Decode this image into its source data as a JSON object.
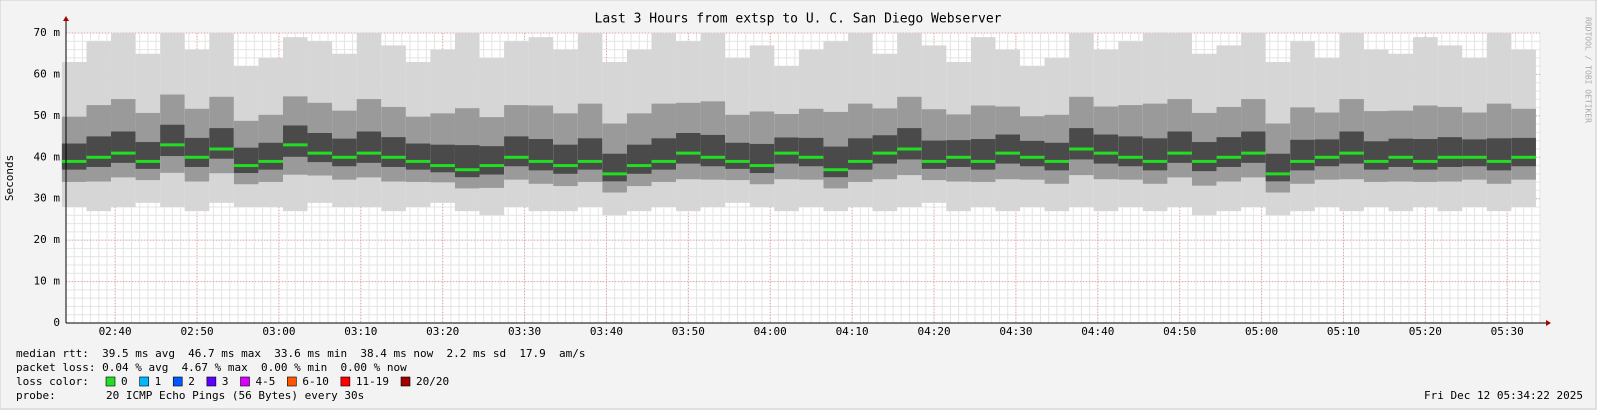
{
  "chart_data": {
    "type": "smoke",
    "title": "Last 3 Hours from extsp to U. C. San Diego Webserver",
    "y_label": "Seconds",
    "side_label": "RRDTOOL / TOBI OETIKER",
    "xlim": [
      "02:34",
      "05:34"
    ],
    "xticks": [
      "02:40",
      "02:50",
      "03:00",
      "03:10",
      "03:20",
      "03:30",
      "03:40",
      "03:50",
      "04:00",
      "04:10",
      "04:20",
      "04:30",
      "04:40",
      "04:50",
      "05:00",
      "05:10",
      "05:20",
      "05:30"
    ],
    "ylim": [
      0,
      0.07
    ],
    "yticks": [
      0,
      {
        "value": 0.01,
        "label": "10 m"
      },
      {
        "value": 0.02,
        "label": "20 m"
      },
      {
        "value": 0.03,
        "label": "30 m"
      },
      {
        "value": 0.04,
        "label": "40 m"
      },
      {
        "value": 0.05,
        "label": "50 m"
      },
      {
        "value": 0.06,
        "label": "60 m"
      },
      {
        "value": 0.07,
        "label": "70 m"
      }
    ],
    "grid": true,
    "x": [
      "02:35",
      "02:38",
      "02:41",
      "02:44",
      "02:47",
      "02:50",
      "02:53",
      "02:56",
      "02:59",
      "03:02",
      "03:05",
      "03:08",
      "03:11",
      "03:14",
      "03:17",
      "03:20",
      "03:23",
      "03:26",
      "03:29",
      "03:32",
      "03:35",
      "03:38",
      "03:41",
      "03:44",
      "03:47",
      "03:50",
      "03:53",
      "03:56",
      "03:59",
      "04:02",
      "04:05",
      "04:08",
      "04:11",
      "04:14",
      "04:17",
      "04:20",
      "04:23",
      "04:26",
      "04:29",
      "04:32",
      "04:35",
      "04:38",
      "04:41",
      "04:44",
      "04:47",
      "04:50",
      "04:53",
      "04:56",
      "04:59",
      "05:02",
      "05:05",
      "05:08",
      "05:11",
      "05:14",
      "05:17",
      "05:20",
      "05:23",
      "05:26",
      "05:29",
      "05:32"
    ],
    "median": {
      "name": "median rtt",
      "color": "#22dd22",
      "values": [
        0.039,
        0.04,
        0.041,
        0.039,
        0.043,
        0.04,
        0.042,
        0.038,
        0.039,
        0.043,
        0.041,
        0.04,
        0.041,
        0.04,
        0.039,
        0.038,
        0.037,
        0.038,
        0.04,
        0.039,
        0.038,
        0.039,
        0.036,
        0.038,
        0.039,
        0.041,
        0.04,
        0.039,
        0.038,
        0.041,
        0.04,
        0.037,
        0.039,
        0.041,
        0.042,
        0.039,
        0.04,
        0.039,
        0.041,
        0.04,
        0.039,
        0.042,
        0.041,
        0.04,
        0.039,
        0.041,
        0.039,
        0.04,
        0.041,
        0.036,
        0.039,
        0.04,
        0.041,
        0.039,
        0.04,
        0.039,
        0.04,
        0.04,
        0.039,
        0.04
      ]
    },
    "low": [
      0.028,
      0.027,
      0.028,
      0.029,
      0.028,
      0.027,
      0.029,
      0.028,
      0.028,
      0.027,
      0.029,
      0.028,
      0.028,
      0.027,
      0.028,
      0.029,
      0.027,
      0.026,
      0.028,
      0.027,
      0.027,
      0.028,
      0.026,
      0.027,
      0.028,
      0.027,
      0.028,
      0.029,
      0.028,
      0.027,
      0.028,
      0.027,
      0.028,
      0.027,
      0.028,
      0.029,
      0.027,
      0.028,
      0.027,
      0.028,
      0.027,
      0.028,
      0.027,
      0.028,
      0.027,
      0.028,
      0.026,
      0.027,
      0.028,
      0.026,
      0.027,
      0.028,
      0.027,
      0.028,
      0.027,
      0.028,
      0.027,
      0.028,
      0.027,
      0.028
    ],
    "high": [
      0.063,
      0.068,
      0.07,
      0.065,
      0.07,
      0.066,
      0.07,
      0.062,
      0.064,
      0.069,
      0.068,
      0.065,
      0.07,
      0.067,
      0.063,
      0.066,
      0.07,
      0.064,
      0.068,
      0.069,
      0.066,
      0.07,
      0.063,
      0.066,
      0.07,
      0.068,
      0.07,
      0.064,
      0.067,
      0.062,
      0.066,
      0.068,
      0.07,
      0.065,
      0.07,
      0.067,
      0.063,
      0.069,
      0.066,
      0.062,
      0.064,
      0.07,
      0.066,
      0.068,
      0.07,
      0.07,
      0.065,
      0.067,
      0.07,
      0.063,
      0.068,
      0.064,
      0.07,
      0.066,
      0.065,
      0.069,
      0.067,
      0.064,
      0.07,
      0.066
    ],
    "stats": [
      "median rtt:  39.5 ms avg  46.7 ms max  33.6 ms min  38.4 ms now  2.2 ms sd  17.9  am/s",
      "packet loss: 0.04 % avg  4.67 % max  0.00 % min  0.00 % now"
    ],
    "loss_label": "loss color:",
    "loss_colors": [
      {
        "name": "0",
        "color": "#22dd22"
      },
      {
        "name": "1",
        "color": "#00b8ff"
      },
      {
        "name": "2",
        "color": "#0059ff"
      },
      {
        "name": "3",
        "color": "#5e00ff"
      },
      {
        "name": "4-5",
        "color": "#d800ff"
      },
      {
        "name": "6-10",
        "color": "#ff5500"
      },
      {
        "name": "11-19",
        "color": "#ff0000"
      },
      {
        "name": "20/20",
        "color": "#a10000"
      }
    ],
    "probe_label": "probe:",
    "probe": "20 ICMP Echo Pings (56 Bytes) every 30s",
    "timestamp": "Fri Dec 12 05:34:22 2025"
  }
}
